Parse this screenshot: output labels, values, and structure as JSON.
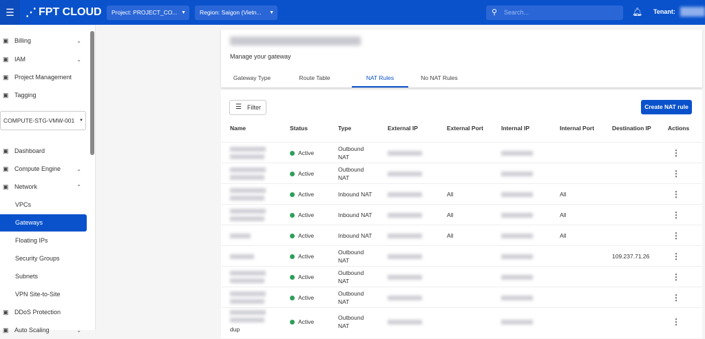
{
  "header": {
    "logo": "FPT CLOUD",
    "project": "Project: PROJECT_CO...",
    "region": "Region: Saigon (Vietn...",
    "search_placeholder": "Search...",
    "tenant_label": "Tenant:"
  },
  "sidebar": {
    "items_top": [
      {
        "label": "Billing",
        "icon": "wallet-icon",
        "chev": "⌄"
      },
      {
        "label": "IAM",
        "icon": "id-card-icon",
        "chev": "⌄"
      },
      {
        "label": "Project Management",
        "icon": "project-icon"
      },
      {
        "label": "Tagging",
        "icon": "tag-icon"
      }
    ],
    "project_select": "COMPUTE-STG-VMW-001",
    "items": [
      {
        "label": "Dashboard",
        "icon": "chart-icon"
      },
      {
        "label": "Compute Engine",
        "icon": "monitor-icon",
        "chev": "⌄"
      },
      {
        "label": "Network",
        "icon": "globe-icon",
        "chev": "⌃"
      }
    ],
    "network_sub": [
      "VPCs",
      "Gateways",
      "Floating IPs",
      "Security Groups",
      "Subnets",
      "VPN Site-to-Site"
    ],
    "active": "Gateways",
    "items_bottom": [
      {
        "label": "DDoS Protection",
        "icon": "shield-icon"
      },
      {
        "label": "Auto Scaling",
        "icon": "scale-icon",
        "chev": "⌄"
      }
    ]
  },
  "gateway": {
    "subtitle": "Manage your gateway",
    "tabs": [
      "Gateway Type",
      "Route Table",
      "NAT Rules",
      "No NAT Rules"
    ],
    "active_tab": "NAT Rules"
  },
  "toolbar": {
    "filter": "Filter",
    "create": "Create NAT rule"
  },
  "table": {
    "headers": [
      "Name",
      "Status",
      "Type",
      "External IP",
      "External Port",
      "Internal IP",
      "Internal Port",
      "Destination IP",
      "Actions"
    ],
    "rows": [
      {
        "name_extra": "",
        "status": "Active",
        "type": "Outbound NAT",
        "ext_port": "",
        "int_port": "",
        "dest_ip": ""
      },
      {
        "name_extra": "",
        "status": "Active",
        "type": "Outbound NAT",
        "ext_port": "",
        "int_port": "",
        "dest_ip": ""
      },
      {
        "name_extra": "",
        "status": "Active",
        "type": "Inbound NAT",
        "ext_port": "All",
        "int_port": "All",
        "dest_ip": ""
      },
      {
        "name_extra": "",
        "status": "Active",
        "type": "Inbound NAT",
        "ext_port": "All",
        "int_port": "All",
        "dest_ip": ""
      },
      {
        "name_extra": "",
        "status": "Active",
        "type": "Inbound NAT",
        "ext_port": "All",
        "int_port": "All",
        "dest_ip": ""
      },
      {
        "name_extra": "",
        "status": "Active",
        "type": "Outbound NAT",
        "ext_port": "",
        "int_port": "",
        "dest_ip": "109.237.71.26"
      },
      {
        "name_extra": "",
        "status": "Active",
        "type": "Outbound NAT",
        "ext_port": "",
        "int_port": "",
        "dest_ip": ""
      },
      {
        "name_extra": "",
        "status": "Active",
        "type": "Outbound NAT",
        "ext_port": "",
        "int_port": "",
        "dest_ip": ""
      },
      {
        "name_extra": "dup",
        "status": "Active",
        "type": "Outbound NAT",
        "ext_port": "",
        "int_port": "",
        "dest_ip": ""
      }
    ]
  },
  "colors": {
    "brand": "#0a52cc",
    "active": "#2e9e5b"
  }
}
